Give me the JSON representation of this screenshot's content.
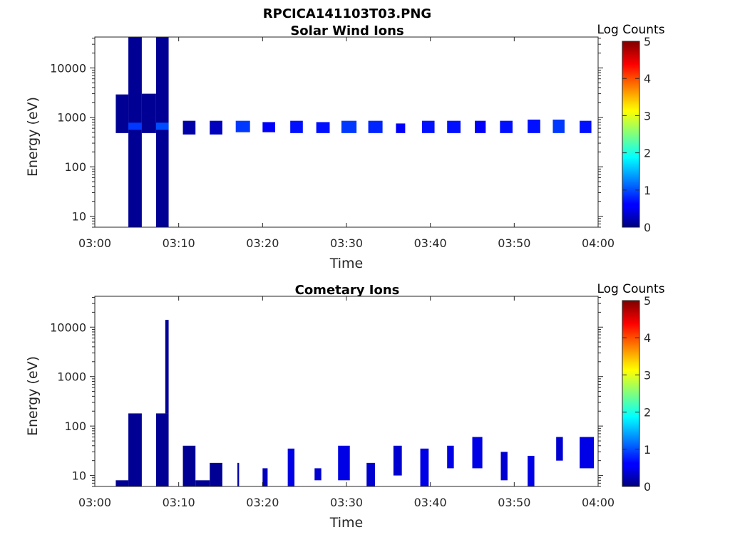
{
  "figure_title": "RPCICA141103T03.PNG",
  "panels": [
    {
      "title": "Solar Wind Ions",
      "xlabel": "Time",
      "ylabel": "Energy (eV)",
      "colorbar_label": "Log Counts"
    },
    {
      "title": "Cometary Ions",
      "xlabel": "Time",
      "ylabel": "Energy (eV)",
      "colorbar_label": "Log Counts"
    }
  ],
  "chart_data": [
    {
      "type": "heatmap",
      "title": "Solar Wind Ions",
      "xlabel": "Time",
      "ylabel": "Energy (eV)",
      "y_scale": "log",
      "xlim": [
        "03:00",
        "04:00"
      ],
      "ylim": [
        6,
        42000
      ],
      "xticks": [
        "03:00",
        "03:10",
        "03:20",
        "03:30",
        "03:40",
        "03:50",
        "04:00"
      ],
      "yticks": [
        "10",
        "100",
        "1000",
        "10000"
      ],
      "colorbar": {
        "label": "Log Counts",
        "range": [
          0,
          5
        ],
        "ticks": [
          "0",
          "1",
          "2",
          "3",
          "4",
          "5"
        ],
        "colormap": "jet"
      },
      "cells": [
        {
          "t0": 2.5,
          "t1": 4.0,
          "e0": 480,
          "e1": 2900,
          "v": 0.1
        },
        {
          "t0": 4.0,
          "t1": 5.6,
          "e0": 6,
          "e1": 42000,
          "v": 0.1
        },
        {
          "t0": 4.0,
          "t1": 5.6,
          "e0": 560,
          "e1": 780,
          "v": 0.9
        },
        {
          "t0": 7.3,
          "t1": 8.8,
          "e0": 6,
          "e1": 42000,
          "v": 0.1
        },
        {
          "t0": 7.3,
          "t1": 8.8,
          "e0": 560,
          "e1": 780,
          "v": 1.0
        },
        {
          "t0": 5.6,
          "t1": 7.3,
          "e0": 480,
          "e1": 3000,
          "v": 0.1
        },
        {
          "t0": 10.5,
          "t1": 12.0,
          "e0": 450,
          "e1": 850,
          "v": 0.2
        },
        {
          "t0": 13.7,
          "t1": 15.2,
          "e0": 450,
          "e1": 850,
          "v": 0.3
        },
        {
          "t0": 16.8,
          "t1": 18.5,
          "e0": 500,
          "e1": 850,
          "v": 0.9
        },
        {
          "t0": 20.0,
          "t1": 21.5,
          "e0": 500,
          "e1": 800,
          "v": 0.6
        },
        {
          "t0": 23.3,
          "t1": 24.8,
          "e0": 480,
          "e1": 850,
          "v": 0.7
        },
        {
          "t0": 26.4,
          "t1": 28.0,
          "e0": 480,
          "e1": 800,
          "v": 0.7
        },
        {
          "t0": 29.4,
          "t1": 31.2,
          "e0": 480,
          "e1": 850,
          "v": 0.9
        },
        {
          "t0": 32.6,
          "t1": 34.3,
          "e0": 480,
          "e1": 850,
          "v": 0.8
        },
        {
          "t0": 35.9,
          "t1": 37.0,
          "e0": 480,
          "e1": 750,
          "v": 0.6
        },
        {
          "t0": 39.0,
          "t1": 40.5,
          "e0": 480,
          "e1": 850,
          "v": 0.7
        },
        {
          "t0": 42.0,
          "t1": 43.6,
          "e0": 480,
          "e1": 850,
          "v": 0.7
        },
        {
          "t0": 45.3,
          "t1": 46.6,
          "e0": 480,
          "e1": 850,
          "v": 0.6
        },
        {
          "t0": 48.3,
          "t1": 49.8,
          "e0": 480,
          "e1": 850,
          "v": 0.7
        },
        {
          "t0": 51.6,
          "t1": 53.1,
          "e0": 480,
          "e1": 900,
          "v": 0.7
        },
        {
          "t0": 54.6,
          "t1": 56.0,
          "e0": 480,
          "e1": 900,
          "v": 0.9
        },
        {
          "t0": 57.8,
          "t1": 59.2,
          "e0": 480,
          "e1": 850,
          "v": 0.7
        }
      ]
    },
    {
      "type": "heatmap",
      "title": "Cometary Ions",
      "xlabel": "Time",
      "ylabel": "Energy (eV)",
      "y_scale": "log",
      "xlim": [
        "03:00",
        "04:00"
      ],
      "ylim": [
        6,
        42000
      ],
      "xticks": [
        "03:00",
        "03:10",
        "03:20",
        "03:30",
        "03:40",
        "03:50",
        "04:00"
      ],
      "yticks": [
        "10",
        "100",
        "1000",
        "10000"
      ],
      "colorbar": {
        "label": "Log Counts",
        "range": [
          0,
          5
        ],
        "ticks": [
          "0",
          "1",
          "2",
          "3",
          "4",
          "5"
        ],
        "colormap": "jet"
      },
      "cells": [
        {
          "t0": 2.5,
          "t1": 4.0,
          "e0": 6,
          "e1": 8,
          "v": 0.1
        },
        {
          "t0": 4.0,
          "t1": 5.6,
          "e0": 6,
          "e1": 180,
          "v": 0.1
        },
        {
          "t0": 7.3,
          "t1": 8.8,
          "e0": 6,
          "e1": 180,
          "v": 0.1
        },
        {
          "t0": 8.4,
          "t1": 8.8,
          "e0": 180,
          "e1": 14000,
          "v": 0.1
        },
        {
          "t0": 10.5,
          "t1": 12.0,
          "e0": 6,
          "e1": 40,
          "v": 0.1
        },
        {
          "t0": 12.0,
          "t1": 13.7,
          "e0": 6,
          "e1": 8,
          "v": 0.1
        },
        {
          "t0": 13.7,
          "t1": 15.2,
          "e0": 6,
          "e1": 18,
          "v": 0.1
        },
        {
          "t0": 17.0,
          "t1": 17.2,
          "e0": 6,
          "e1": 18,
          "v": 0.2
        },
        {
          "t0": 20.0,
          "t1": 20.6,
          "e0": 6,
          "e1": 14,
          "v": 0.3
        },
        {
          "t0": 23.0,
          "t1": 23.8,
          "e0": 6,
          "e1": 35,
          "v": 0.5
        },
        {
          "t0": 26.2,
          "t1": 27.0,
          "e0": 8,
          "e1": 14,
          "v": 0.4
        },
        {
          "t0": 29.0,
          "t1": 30.4,
          "e0": 8,
          "e1": 40,
          "v": 0.5
        },
        {
          "t0": 32.4,
          "t1": 33.4,
          "e0": 6,
          "e1": 18,
          "v": 0.4
        },
        {
          "t0": 35.6,
          "t1": 36.6,
          "e0": 10,
          "e1": 40,
          "v": 0.4
        },
        {
          "t0": 38.8,
          "t1": 39.8,
          "e0": 6,
          "e1": 35,
          "v": 0.5
        },
        {
          "t0": 42.0,
          "t1": 42.8,
          "e0": 14,
          "e1": 40,
          "v": 0.5
        },
        {
          "t0": 45.0,
          "t1": 46.2,
          "e0": 14,
          "e1": 60,
          "v": 0.5
        },
        {
          "t0": 48.4,
          "t1": 49.2,
          "e0": 8,
          "e1": 30,
          "v": 0.4
        },
        {
          "t0": 51.6,
          "t1": 52.4,
          "e0": 6,
          "e1": 25,
          "v": 0.5
        },
        {
          "t0": 55.0,
          "t1": 55.8,
          "e0": 20,
          "e1": 60,
          "v": 0.4
        },
        {
          "t0": 57.8,
          "t1": 59.5,
          "e0": 14,
          "e1": 60,
          "v": 0.5
        }
      ]
    }
  ]
}
